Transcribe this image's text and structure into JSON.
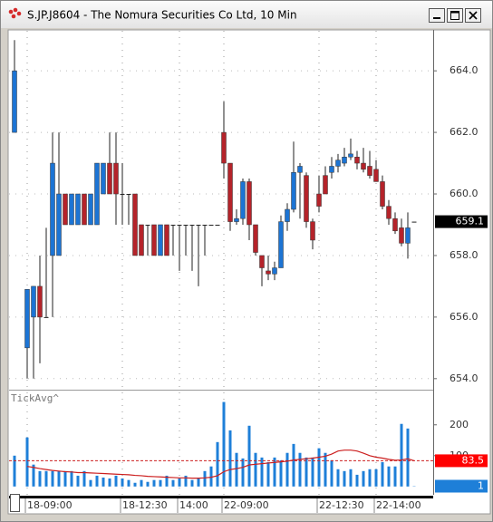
{
  "window": {
    "title": "S.JP.J8604 - The Nomura Securities Co Ltd, 10 Min"
  },
  "chart_data": [
    {
      "type": "candlestick",
      "open": [
        662,
        null,
        655,
        656,
        657,
        656,
        658,
        658,
        660,
        659,
        659,
        660,
        659,
        659,
        660,
        661,
        661,
        660,
        660,
        660,
        659,
        659,
        659,
        658,
        659,
        659,
        659,
        659,
        659,
        659,
        659,
        659,
        659,
        662,
        661,
        659.1,
        659.2,
        660.4,
        659,
        658,
        657.5,
        657.4,
        657.6,
        659.1,
        659.5,
        660.7,
        660.6,
        659.1,
        660,
        660.6,
        660.7,
        660.9,
        661,
        661.2,
        661.2,
        661,
        660.9,
        660.8,
        660.4,
        659.6,
        659.2,
        658.9,
        658.4,
        659.1
      ],
      "high": [
        665,
        null,
        656.9,
        657,
        658,
        658.9,
        662,
        662,
        660,
        660,
        660,
        660,
        660,
        661,
        661,
        662,
        662,
        661,
        660,
        660,
        659,
        659,
        659,
        659,
        659,
        659,
        659,
        659,
        659,
        659,
        659,
        659,
        659,
        663,
        661,
        659.5,
        660.5,
        660.5,
        659,
        658,
        658,
        657.8,
        659.3,
        659.7,
        661.7,
        661,
        660.7,
        659.2,
        660.6,
        660.9,
        661.2,
        661.3,
        661.5,
        661.8,
        661.4,
        661.5,
        661.4,
        661.1,
        660.6,
        659.8,
        659.4,
        659.2,
        659.4,
        659.1
      ],
      "low": [
        662,
        null,
        654,
        654,
        654.5,
        656,
        656,
        658,
        659,
        659,
        659,
        659,
        659,
        659,
        660,
        660,
        659,
        659,
        659,
        658,
        658,
        658,
        658,
        658,
        658,
        658,
        657.5,
        658,
        657.5,
        657,
        658,
        659,
        659,
        660.5,
        658.8,
        659,
        659,
        658.5,
        658,
        657,
        657.2,
        657.2,
        657.6,
        658.8,
        659.4,
        659.2,
        658.9,
        658.2,
        659.4,
        660,
        660.5,
        660.7,
        660.9,
        661.1,
        660.8,
        660.7,
        660.5,
        660.4,
        659.5,
        659,
        658.7,
        658.3,
        657.9,
        659.1
      ],
      "close": [
        664,
        null,
        656.9,
        657,
        656,
        656,
        661,
        660,
        659,
        660,
        660,
        659,
        660,
        661,
        661,
        660,
        660,
        660,
        660,
        658,
        658,
        659,
        658,
        659,
        658,
        659,
        659,
        659,
        659,
        659,
        659,
        659,
        659,
        661,
        659.1,
        659.2,
        660.4,
        659,
        658.1,
        657.6,
        657.4,
        657.6,
        659.1,
        659.5,
        660.7,
        660.9,
        659.1,
        658.5,
        659.6,
        660,
        660.9,
        661.1,
        661.2,
        661.3,
        661,
        660.8,
        660.6,
        660.4,
        659.6,
        659.2,
        658.8,
        658.4,
        658.9,
        659.1
      ],
      "categories": [
        null,
        null,
        "18-09:00",
        null,
        null,
        null,
        null,
        null,
        null,
        null,
        null,
        null,
        null,
        null,
        null,
        null,
        null,
        "18-12:30",
        null,
        null,
        null,
        null,
        null,
        null,
        null,
        null,
        "14:00",
        null,
        null,
        null,
        null,
        null,
        null,
        "22-09:00",
        null,
        null,
        null,
        null,
        null,
        null,
        null,
        null,
        null,
        null,
        null,
        null,
        null,
        null,
        "22-12:30",
        null,
        null,
        null,
        null,
        null,
        null,
        null,
        null,
        "22-14:00",
        null,
        null,
        null,
        null,
        null,
        null
      ],
      "ylim": [
        653.7,
        665.3
      ],
      "yticks": [
        {
          "value": 654,
          "label": "654.0"
        },
        {
          "value": 656,
          "label": "656.0"
        },
        {
          "value": 658,
          "label": "658.0"
        },
        {
          "value": 660,
          "label": "660.0"
        },
        {
          "value": 662,
          "label": "662.0"
        },
        {
          "value": 664,
          "label": "664.0"
        }
      ],
      "up_color": "#1c74d4",
      "down_color": "#b5232a",
      "grid": true
    },
    {
      "type": "bar",
      "title": "TickAvg^",
      "values": [
        100,
        null,
        159,
        71,
        50,
        50,
        50,
        50,
        50,
        50,
        35,
        50,
        21,
        35,
        29,
        26,
        35,
        26,
        21,
        12,
        21,
        15,
        21,
        21,
        35,
        21,
        26,
        35,
        21,
        26,
        50,
        65,
        144,
        274,
        182,
        109,
        91,
        197,
        109,
        94,
        79,
        94,
        85,
        109,
        138,
        109,
        94,
        94,
        124,
        109,
        85,
        56,
        50,
        56,
        38,
        50,
        56,
        56,
        79,
        65,
        65,
        203,
        188,
        1
      ],
      "color": "#1e7fd8",
      "average": {
        "color": "#cc1f1f",
        "values": [
          60,
          null,
          65,
          62,
          58,
          55,
          52,
          50,
          48,
          47,
          45,
          45,
          44,
          43,
          42,
          41,
          40,
          39,
          38,
          36,
          35,
          33,
          32,
          31,
          30,
          29,
          28,
          28,
          27,
          27,
          28,
          30,
          35,
          48,
          55,
          58,
          62,
          70,
          72,
          74,
          76,
          78,
          80,
          82,
          86,
          88,
          90,
          92,
          95,
          98,
          105,
          115,
          118,
          118,
          115,
          108,
          100,
          95,
          92,
          88,
          85,
          86,
          90,
          83.5
        ]
      },
      "ylim": [
        -24,
        308
      ],
      "yticks": [
        100,
        200
      ]
    }
  ]
}
